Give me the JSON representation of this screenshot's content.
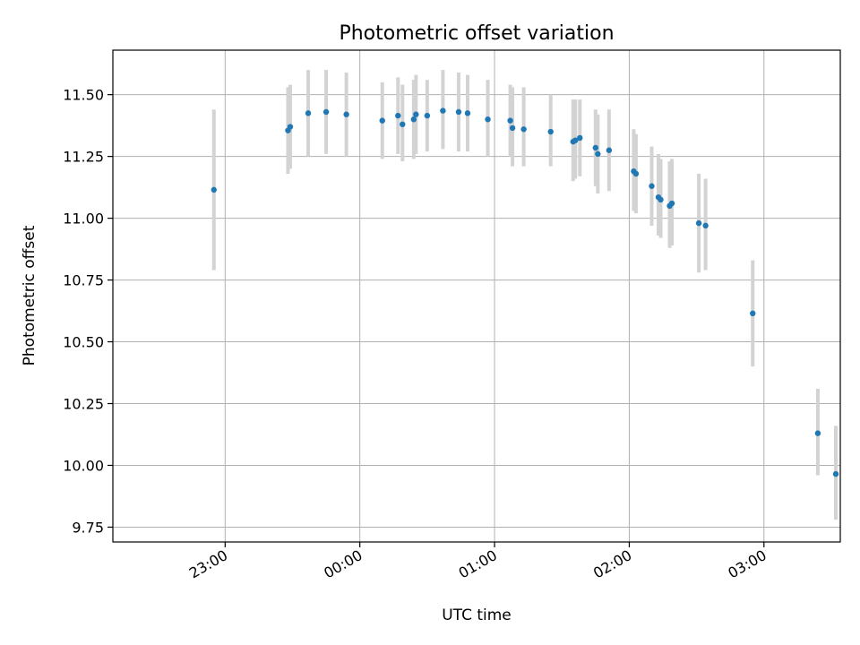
{
  "chart_data": {
    "type": "scatter",
    "title": "Photometric offset variation",
    "xlabel": "UTC time",
    "ylabel": "Photometric offset",
    "xlim_minutes_from_2300": [
      -50,
      274
    ],
    "ylim": [
      9.69,
      11.68
    ],
    "x_ticks": [
      {
        "label": "23:00",
        "minutes": 0
      },
      {
        "label": "00:00",
        "minutes": 60
      },
      {
        "label": "01:00",
        "minutes": 120
      },
      {
        "label": "02:00",
        "minutes": 180
      },
      {
        "label": "03:00",
        "minutes": 240
      }
    ],
    "y_ticks": [
      {
        "label": "9.75",
        "value": 9.75
      },
      {
        "label": "10.00",
        "value": 10.0
      },
      {
        "label": "10.25",
        "value": 10.25
      },
      {
        "label": "10.50",
        "value": 10.5
      },
      {
        "label": "10.75",
        "value": 10.75
      },
      {
        "label": "11.00",
        "value": 11.0
      },
      {
        "label": "11.25",
        "value": 11.25
      },
      {
        "label": "11.50",
        "value": 11.5
      }
    ],
    "grid": true,
    "points": [
      {
        "t": "22:55",
        "y": 11.115,
        "lo": 10.79,
        "hi": 11.44
      },
      {
        "t": "23:28",
        "y": 11.355,
        "lo": 11.18,
        "hi": 11.53
      },
      {
        "t": "23:29",
        "y": 11.37,
        "lo": 11.2,
        "hi": 11.54
      },
      {
        "t": "23:37",
        "y": 11.425,
        "lo": 11.25,
        "hi": 11.6
      },
      {
        "t": "23:45",
        "y": 11.43,
        "lo": 11.26,
        "hi": 11.6
      },
      {
        "t": "23:54",
        "y": 11.42,
        "lo": 11.25,
        "hi": 11.59
      },
      {
        "t": "00:10",
        "y": 11.395,
        "lo": 11.24,
        "hi": 11.55
      },
      {
        "t": "00:17",
        "y": 11.415,
        "lo": 11.26,
        "hi": 11.57
      },
      {
        "t": "00:19",
        "y": 11.38,
        "lo": 11.23,
        "hi": 11.54
      },
      {
        "t": "00:24",
        "y": 11.4,
        "lo": 11.24,
        "hi": 11.56
      },
      {
        "t": "00:25",
        "y": 11.42,
        "lo": 11.26,
        "hi": 11.58
      },
      {
        "t": "00:30",
        "y": 11.415,
        "lo": 11.27,
        "hi": 11.56
      },
      {
        "t": "00:37",
        "y": 11.435,
        "lo": 11.28,
        "hi": 11.6
      },
      {
        "t": "00:44",
        "y": 11.43,
        "lo": 11.27,
        "hi": 11.59
      },
      {
        "t": "00:48",
        "y": 11.425,
        "lo": 11.27,
        "hi": 11.58
      },
      {
        "t": "00:57",
        "y": 11.4,
        "lo": 11.25,
        "hi": 11.56
      },
      {
        "t": "01:07",
        "y": 11.395,
        "lo": 11.25,
        "hi": 11.54
      },
      {
        "t": "01:08",
        "y": 11.365,
        "lo": 11.21,
        "hi": 11.53
      },
      {
        "t": "01:13",
        "y": 11.36,
        "lo": 11.21,
        "hi": 11.53
      },
      {
        "t": "01:25",
        "y": 11.35,
        "lo": 11.21,
        "hi": 11.5
      },
      {
        "t": "01:35",
        "y": 11.31,
        "lo": 11.15,
        "hi": 11.48
      },
      {
        "t": "01:36",
        "y": 11.315,
        "lo": 11.16,
        "hi": 11.48
      },
      {
        "t": "01:38",
        "y": 11.325,
        "lo": 11.17,
        "hi": 11.48
      },
      {
        "t": "01:45",
        "y": 11.285,
        "lo": 11.13,
        "hi": 11.44
      },
      {
        "t": "01:46",
        "y": 11.26,
        "lo": 11.1,
        "hi": 11.42
      },
      {
        "t": "01:51",
        "y": 11.275,
        "lo": 11.11,
        "hi": 11.44
      },
      {
        "t": "02:02",
        "y": 11.19,
        "lo": 11.03,
        "hi": 11.36
      },
      {
        "t": "02:03",
        "y": 11.18,
        "lo": 11.02,
        "hi": 11.34
      },
      {
        "t": "02:10",
        "y": 11.13,
        "lo": 10.97,
        "hi": 11.29
      },
      {
        "t": "02:13",
        "y": 11.085,
        "lo": 10.93,
        "hi": 11.26
      },
      {
        "t": "02:14",
        "y": 11.075,
        "lo": 10.92,
        "hi": 11.24
      },
      {
        "t": "02:18",
        "y": 11.05,
        "lo": 10.88,
        "hi": 11.23
      },
      {
        "t": "02:19",
        "y": 11.06,
        "lo": 10.89,
        "hi": 11.24
      },
      {
        "t": "02:31",
        "y": 10.98,
        "lo": 10.78,
        "hi": 11.18
      },
      {
        "t": "02:34",
        "y": 10.97,
        "lo": 10.79,
        "hi": 11.16
      },
      {
        "t": "02:55",
        "y": 10.615,
        "lo": 10.4,
        "hi": 10.83
      },
      {
        "t": "03:24",
        "y": 10.13,
        "lo": 9.96,
        "hi": 10.31
      },
      {
        "t": "03:32",
        "y": 9.965,
        "lo": 9.78,
        "hi": 10.16
      }
    ]
  }
}
